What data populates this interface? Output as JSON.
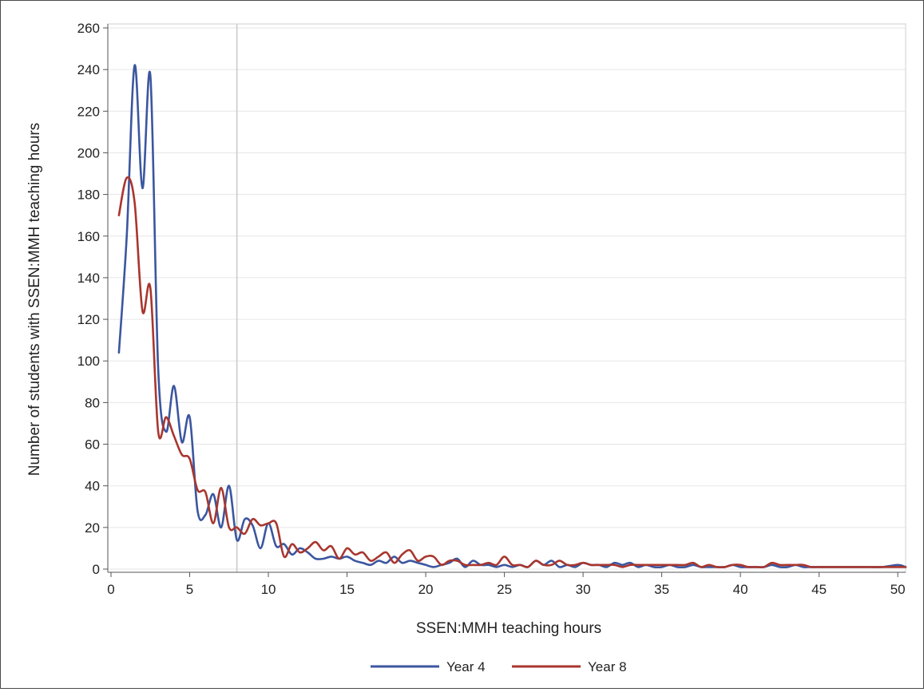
{
  "chart_data": {
    "type": "line",
    "title": "",
    "xlabel": "SSEN:MMH teaching hours",
    "ylabel": "Number of students with SSEN:MMH teaching hours",
    "xlim": [
      0,
      50.5
    ],
    "ylim": [
      0,
      260
    ],
    "xticks": [
      0,
      5,
      10,
      15,
      20,
      25,
      30,
      35,
      40,
      45,
      50
    ],
    "yticks": [
      0,
      20,
      40,
      60,
      80,
      100,
      120,
      140,
      160,
      180,
      200,
      220,
      240,
      260
    ],
    "grid": {
      "horizontal": true,
      "vertical": false
    },
    "reference_line_x": 8,
    "legend_position": "bottom",
    "series": [
      {
        "name": "Year 4",
        "color": "#3b56a0",
        "points": [
          [
            0.5,
            104
          ],
          [
            1.0,
            160
          ],
          [
            1.5,
            242
          ],
          [
            2.0,
            183
          ],
          [
            2.5,
            237
          ],
          [
            3.0,
            96
          ],
          [
            3.5,
            66
          ],
          [
            4.0,
            88
          ],
          [
            4.5,
            61
          ],
          [
            5.0,
            73
          ],
          [
            5.5,
            28
          ],
          [
            6.0,
            26
          ],
          [
            6.5,
            36
          ],
          [
            7.0,
            20
          ],
          [
            7.5,
            40
          ],
          [
            8.0,
            14
          ],
          [
            8.5,
            24
          ],
          [
            9.0,
            21
          ],
          [
            9.5,
            10
          ],
          [
            10.0,
            22
          ],
          [
            10.5,
            11
          ],
          [
            11.0,
            12
          ],
          [
            11.5,
            7
          ],
          [
            12.0,
            10
          ],
          [
            12.5,
            8
          ],
          [
            13.0,
            5
          ],
          [
            13.5,
            5
          ],
          [
            14.0,
            6
          ],
          [
            14.5,
            5
          ],
          [
            15.0,
            6
          ],
          [
            15.5,
            4
          ],
          [
            16.0,
            3
          ],
          [
            16.5,
            2
          ],
          [
            17.0,
            4
          ],
          [
            17.5,
            3
          ],
          [
            18.0,
            6
          ],
          [
            18.5,
            3
          ],
          [
            19.0,
            4
          ],
          [
            19.5,
            3
          ],
          [
            20.0,
            2
          ],
          [
            20.5,
            1
          ],
          [
            21.0,
            2
          ],
          [
            21.5,
            3
          ],
          [
            22.0,
            5
          ],
          [
            22.5,
            1
          ],
          [
            23.0,
            4
          ],
          [
            23.5,
            2
          ],
          [
            24.0,
            2
          ],
          [
            24.5,
            1
          ],
          [
            25.0,
            2
          ],
          [
            25.5,
            1
          ],
          [
            26.0,
            2
          ],
          [
            26.5,
            1
          ],
          [
            27.0,
            4
          ],
          [
            27.5,
            2
          ],
          [
            28.0,
            4
          ],
          [
            28.5,
            1
          ],
          [
            29.0,
            2
          ],
          [
            29.5,
            1
          ],
          [
            30.0,
            3
          ],
          [
            30.5,
            2
          ],
          [
            31.0,
            2
          ],
          [
            31.5,
            1
          ],
          [
            32.0,
            3
          ],
          [
            32.5,
            2
          ],
          [
            33.0,
            3
          ],
          [
            33.5,
            1
          ],
          [
            34.0,
            2
          ],
          [
            34.5,
            1
          ],
          [
            35.0,
            1
          ],
          [
            35.5,
            2
          ],
          [
            36.0,
            1
          ],
          [
            36.5,
            1
          ],
          [
            37.0,
            2
          ],
          [
            37.5,
            1
          ],
          [
            38.0,
            1
          ],
          [
            38.5,
            1
          ],
          [
            39.0,
            1
          ],
          [
            39.5,
            2
          ],
          [
            40.0,
            1
          ],
          [
            40.5,
            1
          ],
          [
            41.0,
            1
          ],
          [
            41.5,
            1
          ],
          [
            42.0,
            2
          ],
          [
            42.5,
            1
          ],
          [
            43.0,
            1
          ],
          [
            43.5,
            2
          ],
          [
            44.0,
            1
          ],
          [
            44.5,
            1
          ],
          [
            45.0,
            1
          ],
          [
            46.0,
            1
          ],
          [
            47.0,
            1
          ],
          [
            48.0,
            1
          ],
          [
            49.0,
            1
          ],
          [
            50.0,
            2
          ],
          [
            50.5,
            1
          ]
        ]
      },
      {
        "name": "Year 8",
        "color": "#a8362e",
        "points": [
          [
            0.5,
            170
          ],
          [
            1.0,
            188
          ],
          [
            1.5,
            176
          ],
          [
            2.0,
            124
          ],
          [
            2.5,
            135
          ],
          [
            3.0,
            66
          ],
          [
            3.5,
            73
          ],
          [
            4.0,
            64
          ],
          [
            4.5,
            55
          ],
          [
            5.0,
            53
          ],
          [
            5.5,
            38
          ],
          [
            6.0,
            37
          ],
          [
            6.5,
            22
          ],
          [
            7.0,
            39
          ],
          [
            7.5,
            20
          ],
          [
            8.0,
            20
          ],
          [
            8.5,
            17
          ],
          [
            9.0,
            24
          ],
          [
            9.5,
            21
          ],
          [
            10.0,
            22
          ],
          [
            10.5,
            22
          ],
          [
            11.0,
            6
          ],
          [
            11.5,
            12
          ],
          [
            12.0,
            8
          ],
          [
            12.5,
            10
          ],
          [
            13.0,
            13
          ],
          [
            13.5,
            9
          ],
          [
            14.0,
            11
          ],
          [
            14.5,
            5
          ],
          [
            15.0,
            10
          ],
          [
            15.5,
            7
          ],
          [
            16.0,
            8
          ],
          [
            16.5,
            4
          ],
          [
            17.0,
            6
          ],
          [
            17.5,
            8
          ],
          [
            18.0,
            3
          ],
          [
            18.5,
            7
          ],
          [
            19.0,
            9
          ],
          [
            19.5,
            4
          ],
          [
            20.0,
            6
          ],
          [
            20.5,
            6
          ],
          [
            21.0,
            2
          ],
          [
            21.5,
            4
          ],
          [
            22.0,
            4
          ],
          [
            22.5,
            2
          ],
          [
            23.0,
            2
          ],
          [
            23.5,
            2
          ],
          [
            24.0,
            3
          ],
          [
            24.5,
            2
          ],
          [
            25.0,
            6
          ],
          [
            25.5,
            2
          ],
          [
            26.0,
            2
          ],
          [
            26.5,
            1
          ],
          [
            27.0,
            4
          ],
          [
            27.5,
            2
          ],
          [
            28.0,
            2
          ],
          [
            28.5,
            4
          ],
          [
            29.0,
            2
          ],
          [
            29.5,
            2
          ],
          [
            30.0,
            3
          ],
          [
            30.5,
            2
          ],
          [
            31.0,
            2
          ],
          [
            31.5,
            2
          ],
          [
            32.0,
            2
          ],
          [
            32.5,
            1
          ],
          [
            33.0,
            2
          ],
          [
            33.5,
            2
          ],
          [
            34.0,
            2
          ],
          [
            34.5,
            2
          ],
          [
            35.0,
            2
          ],
          [
            35.5,
            2
          ],
          [
            36.0,
            2
          ],
          [
            36.5,
            2
          ],
          [
            37.0,
            3
          ],
          [
            37.5,
            1
          ],
          [
            38.0,
            2
          ],
          [
            38.5,
            1
          ],
          [
            39.0,
            1
          ],
          [
            39.5,
            2
          ],
          [
            40.0,
            2
          ],
          [
            40.5,
            1
          ],
          [
            41.0,
            1
          ],
          [
            41.5,
            1
          ],
          [
            42.0,
            3
          ],
          [
            42.5,
            2
          ],
          [
            43.0,
            2
          ],
          [
            43.5,
            2
          ],
          [
            44.0,
            2
          ],
          [
            44.5,
            1
          ],
          [
            45.0,
            1
          ],
          [
            46.0,
            1
          ],
          [
            47.0,
            1
          ],
          [
            48.0,
            1
          ],
          [
            49.0,
            1
          ],
          [
            50.0,
            1
          ],
          [
            50.5,
            1
          ]
        ]
      }
    ]
  }
}
